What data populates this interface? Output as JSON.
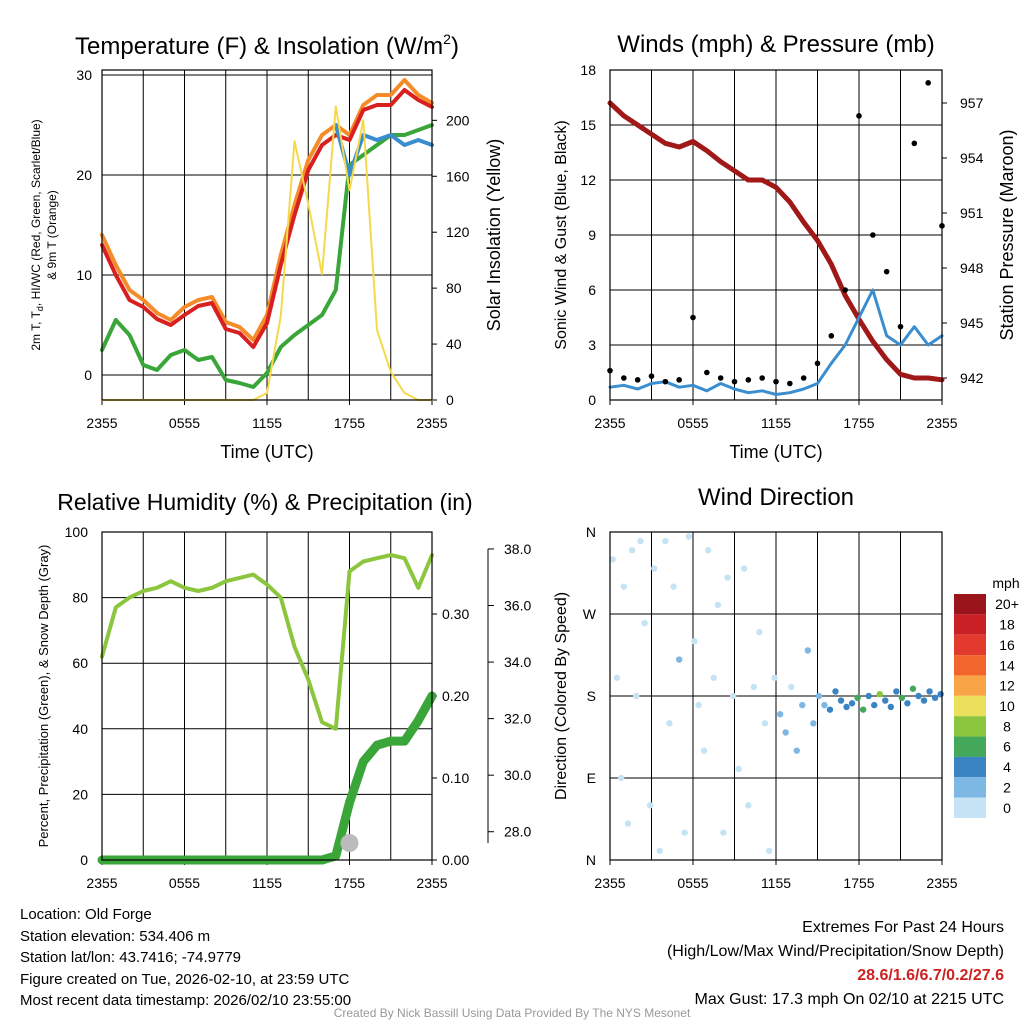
{
  "chart_data": [
    {
      "type": "line",
      "title": "Temperature (F) & Insolation (W/m",
      "title_sup": "2",
      "title_close": ")",
      "xlabel": "Time (UTC)",
      "ylabel_lines": [
        "2m T, T",
        "d",
        ", HI/WC (Red, Green, Scarlet/Blue)",
        "& 9m T (Orange)"
      ],
      "ylabel_right": "Solar Insolation (Yellow)",
      "x_ticks": [
        "2355",
        "0555",
        "1155",
        "1755",
        "2355"
      ],
      "ylim": [
        -2.5,
        30.5
      ],
      "y_ticks": [
        0,
        10,
        20,
        30
      ],
      "y2lim": [
        0,
        236
      ],
      "y2_ticks": [
        0,
        40,
        80,
        120,
        160,
        200
      ],
      "x_hours": [
        0,
        1,
        2,
        3,
        4,
        5,
        6,
        7,
        8,
        9,
        10,
        11,
        12,
        13,
        14,
        15,
        16,
        17,
        18,
        19,
        20,
        21,
        22,
        23,
        24
      ],
      "series": [
        {
          "name": "9m T",
          "color": "#f58c2a",
          "values": [
            14,
            11,
            8.5,
            7.5,
            6.2,
            5.5,
            6.8,
            7.5,
            7.8,
            5.3,
            4.8,
            3.5,
            6.0,
            12.0,
            17.0,
            21.5,
            24.0,
            25.0,
            24.0,
            27.0,
            28.0,
            28.0,
            29.5,
            28.0,
            27.2
          ]
        },
        {
          "name": "2m T",
          "color": "#d92020",
          "values": [
            13,
            10,
            7.5,
            6.8,
            5.6,
            5.0,
            6.0,
            6.9,
            7.2,
            4.6,
            4.2,
            2.8,
            5.2,
            11.0,
            16.0,
            20.5,
            23.0,
            24.0,
            23.5,
            26.5,
            27.0,
            27.0,
            28.5,
            27.5,
            26.8
          ]
        },
        {
          "name": "Td",
          "color": "#3aa63a",
          "values": [
            2.5,
            5.5,
            4.0,
            1.0,
            0.5,
            2.0,
            2.5,
            1.5,
            1.8,
            -0.5,
            -0.8,
            -1.2,
            0.2,
            2.8,
            4.0,
            5.0,
            6.0,
            8.5,
            21.0,
            22.0,
            23.0,
            24.0,
            24.0,
            24.5,
            25.0
          ]
        },
        {
          "name": "HI/WC",
          "color": "#3a8ed0",
          "values": [
            null,
            null,
            null,
            null,
            null,
            null,
            null,
            null,
            null,
            null,
            null,
            null,
            null,
            null,
            null,
            null,
            null,
            25.0,
            20.0,
            24.0,
            23.5,
            24.0,
            23.0,
            23.5,
            23.0
          ]
        },
        {
          "name": "Solar",
          "color": "#f5d94a",
          "values": [
            0,
            0,
            0,
            0,
            0,
            0,
            0,
            0,
            0,
            0,
            0,
            0,
            5,
            60,
            185,
            140,
            90,
            210,
            150,
            200,
            50,
            20,
            5,
            0,
            0
          ]
        }
      ]
    },
    {
      "type": "line",
      "title": "Winds (mph) & Pressure (mb)",
      "xlabel": "Time (UTC)",
      "ylabel": "Sonic Wind & Gust (Blue, Black)",
      "ylabel_right": "Station Pressure (Maroon)",
      "x_ticks": [
        "2355",
        "0555",
        "1155",
        "1755",
        "2355"
      ],
      "ylim": [
        0,
        18
      ],
      "y_ticks": [
        0,
        3,
        6,
        9,
        12,
        15,
        18
      ],
      "y2lim": [
        940.8,
        958.8
      ],
      "y2_ticks": [
        942,
        945,
        948,
        951,
        954,
        957
      ],
      "x_hours": [
        0,
        1,
        2,
        3,
        4,
        5,
        6,
        7,
        8,
        9,
        10,
        11,
        12,
        13,
        14,
        15,
        16,
        17,
        18,
        19,
        20,
        21,
        22,
        23,
        24
      ],
      "series": [
        {
          "name": "Pressure",
          "color": "#a01818",
          "values": [
            957.0,
            956.3,
            955.8,
            955.3,
            954.8,
            954.6,
            954.9,
            954.4,
            953.8,
            953.3,
            952.8,
            952.8,
            952.4,
            951.6,
            950.5,
            949.5,
            948.2,
            946.5,
            945.2,
            944.0,
            943.0,
            942.2,
            942.0,
            942.0,
            941.9
          ]
        },
        {
          "name": "Sonic Wind",
          "color": "#3a8ed0",
          "values": [
            0.7,
            0.8,
            0.6,
            0.9,
            1.0,
            0.7,
            0.8,
            0.5,
            0.9,
            0.6,
            0.4,
            0.5,
            0.3,
            0.4,
            0.6,
            0.9,
            2.0,
            3.0,
            4.5,
            6.0,
            3.5,
            3.0,
            4.0,
            3.0,
            3.5
          ]
        },
        {
          "name": "Gust",
          "color": "#000000",
          "values": [
            1.6,
            1.2,
            1.1,
            1.3,
            1.0,
            1.1,
            4.5,
            1.5,
            1.2,
            1.0,
            1.1,
            1.2,
            1.0,
            0.9,
            1.2,
            2.0,
            3.5,
            6.0,
            15.5,
            9.0,
            7.0,
            4.0,
            14.0,
            17.3,
            9.5
          ]
        }
      ]
    },
    {
      "type": "line",
      "title": "Relative Humidity (%) & Precipitation (in)",
      "ylabel": "Percent, Precipitation (Green), & Snow Depth (Gray)",
      "x_ticks": [
        "2355",
        "0555",
        "1155",
        "1755",
        "2355"
      ],
      "ylim": [
        0,
        100
      ],
      "y_ticks": [
        0,
        20,
        40,
        60,
        80,
        100
      ],
      "y2lim": [
        0,
        0.4
      ],
      "y2_ticks": [
        "0.00",
        "0.10",
        "0.20",
        "0.30"
      ],
      "y3lim": [
        27.0,
        38.6
      ],
      "y3_ticks": [
        "28.0",
        "30.0",
        "32.0",
        "34.0",
        "36.0",
        "38.0"
      ],
      "x_hours": [
        0,
        1,
        2,
        3,
        4,
        5,
        6,
        7,
        8,
        9,
        10,
        11,
        12,
        13,
        14,
        15,
        16,
        17,
        18,
        19,
        20,
        21,
        22,
        23,
        24
      ],
      "series": [
        {
          "name": "RH",
          "color": "#8cc63f",
          "values": [
            62,
            77,
            80,
            82,
            83,
            85,
            83,
            82,
            83,
            85,
            86,
            87,
            84,
            80,
            65,
            55,
            42,
            40,
            88,
            91,
            92,
            93,
            92,
            83,
            93
          ]
        },
        {
          "name": "Precipitation",
          "color": "#3aa63a",
          "values": [
            0,
            0,
            0,
            0,
            0,
            0,
            0,
            0,
            0,
            0,
            0,
            0,
            0,
            0,
            0,
            0,
            0,
            0.005,
            0.07,
            0.12,
            0.14,
            0.145,
            0.145,
            0.17,
            0.2
          ]
        },
        {
          "name": "Snow Depth",
          "color": "#bbbbbb",
          "values": [
            null,
            null,
            null,
            null,
            null,
            null,
            null,
            null,
            null,
            null,
            null,
            null,
            null,
            null,
            null,
            null,
            null,
            null,
            27.6,
            null,
            null,
            null,
            null,
            null,
            null
          ]
        }
      ]
    },
    {
      "type": "scatter",
      "title": "Wind Direction",
      "ylabel": "Direction (Colored By Speed)",
      "x_ticks": [
        "2355",
        "0555",
        "1155",
        "1755",
        "2355"
      ],
      "y_ticks": [
        "N",
        "E",
        "S",
        "W",
        "N"
      ],
      "ylim": [
        0,
        360
      ],
      "legend_title": "mph",
      "legend_labels": [
        "20+",
        "18",
        "16",
        "14",
        "12",
        "10",
        "8",
        "6",
        "4",
        "2",
        "0"
      ],
      "legend_colors": [
        "#99141b",
        "#c92026",
        "#e23a2c",
        "#f2662d",
        "#f9a447",
        "#ebe05b",
        "#8cc63f",
        "#43a85a",
        "#3a84c4",
        "#7db7e3",
        "#c6e3f6"
      ],
      "points": [
        [
          0.2,
          330
        ],
        [
          0.5,
          200
        ],
        [
          0.8,
          90
        ],
        [
          1.0,
          300
        ],
        [
          1.3,
          40
        ],
        [
          1.6,
          340
        ],
        [
          1.9,
          180
        ],
        [
          2.2,
          350
        ],
        [
          2.5,
          260
        ],
        [
          2.9,
          60
        ],
        [
          3.2,
          320
        ],
        [
          3.6,
          10
        ],
        [
          4.0,
          350
        ],
        [
          4.3,
          150
        ],
        [
          4.6,
          300
        ],
        [
          5.0,
          220
        ],
        [
          5.4,
          30
        ],
        [
          5.7,
          355
        ],
        [
          6.1,
          240
        ],
        [
          6.4,
          170
        ],
        [
          6.8,
          120
        ],
        [
          7.1,
          340
        ],
        [
          7.5,
          200
        ],
        [
          7.8,
          280
        ],
        [
          8.2,
          30
        ],
        [
          8.5,
          310
        ],
        [
          8.9,
          180
        ],
        [
          9.3,
          100
        ],
        [
          9.7,
          320
        ],
        [
          10.0,
          60
        ],
        [
          10.4,
          190
        ],
        [
          10.8,
          250
        ],
        [
          11.2,
          150
        ],
        [
          11.5,
          10
        ],
        [
          11.9,
          200
        ],
        [
          12.3,
          160
        ],
        [
          12.7,
          140
        ],
        [
          13.1,
          190
        ],
        [
          13.5,
          120
        ],
        [
          13.9,
          170
        ],
        [
          14.3,
          230
        ],
        [
          14.7,
          150
        ],
        [
          15.1,
          180
        ],
        [
          15.5,
          170
        ],
        [
          15.9,
          165
        ],
        [
          16.3,
          185
        ],
        [
          16.7,
          175
        ],
        [
          17.1,
          168
        ],
        [
          17.5,
          172
        ],
        [
          17.9,
          178
        ],
        [
          18.3,
          165
        ],
        [
          18.7,
          180
        ],
        [
          19.1,
          170
        ],
        [
          19.5,
          182
        ],
        [
          19.9,
          175
        ],
        [
          20.3,
          168
        ],
        [
          20.7,
          185
        ],
        [
          21.1,
          178
        ],
        [
          21.5,
          172
        ],
        [
          21.9,
          188
        ],
        [
          22.3,
          180
        ],
        [
          22.7,
          175
        ],
        [
          23.1,
          185
        ],
        [
          23.5,
          178
        ],
        [
          23.9,
          182
        ]
      ],
      "speeds": [
        0.5,
        0.8,
        0.4,
        0.6,
        0.9,
        0.5,
        0.7,
        0.3,
        0.8,
        0.6,
        0.5,
        0.9,
        0.7,
        0.4,
        0.6,
        1.0,
        0.8,
        0.5,
        0.7,
        0.6,
        0.4,
        0.9,
        0.8,
        0.5,
        0.6,
        0.7,
        0.9,
        0.4,
        0.6,
        0.8,
        0.5,
        0.7,
        0.6,
        0.3,
        0.8,
        1.0,
        1.2,
        0.9,
        1.1,
        1.5,
        1.0,
        1.3,
        2.5,
        2.8,
        3.0,
        3.5,
        3.2,
        3.8,
        4.5,
        5.0,
        6.5,
        4.2,
        3.9,
        7.0,
        4.0,
        3.5,
        4.8,
        5.2,
        3.7,
        6.2,
        4.1,
        3.3,
        4.5,
        3.9,
        3.6
      ]
    }
  ],
  "info": {
    "location": "Location: Old Forge",
    "elevation": "Station elevation: 534.406 m",
    "latlon": "Station lat/lon: 43.7416; -74.9779",
    "created": "Figure created on Tue, 2026-02-10, at 23:59 UTC",
    "recent": "Most recent data timestamp: 2026/02/10 23:55:00"
  },
  "extremes": {
    "title": "Extremes For Past 24 Hours",
    "subtitle": "(High/Low/Max Wind/Precipitation/Snow Depth)",
    "values": "28.6/1.6/6.7/0.2/27.6",
    "max_gust": "Max Gust: 17.3 mph On 02/10 at 2215 UTC"
  },
  "credit": "Created By Nick Bassill Using Data Provided By The NYS Mesonet"
}
